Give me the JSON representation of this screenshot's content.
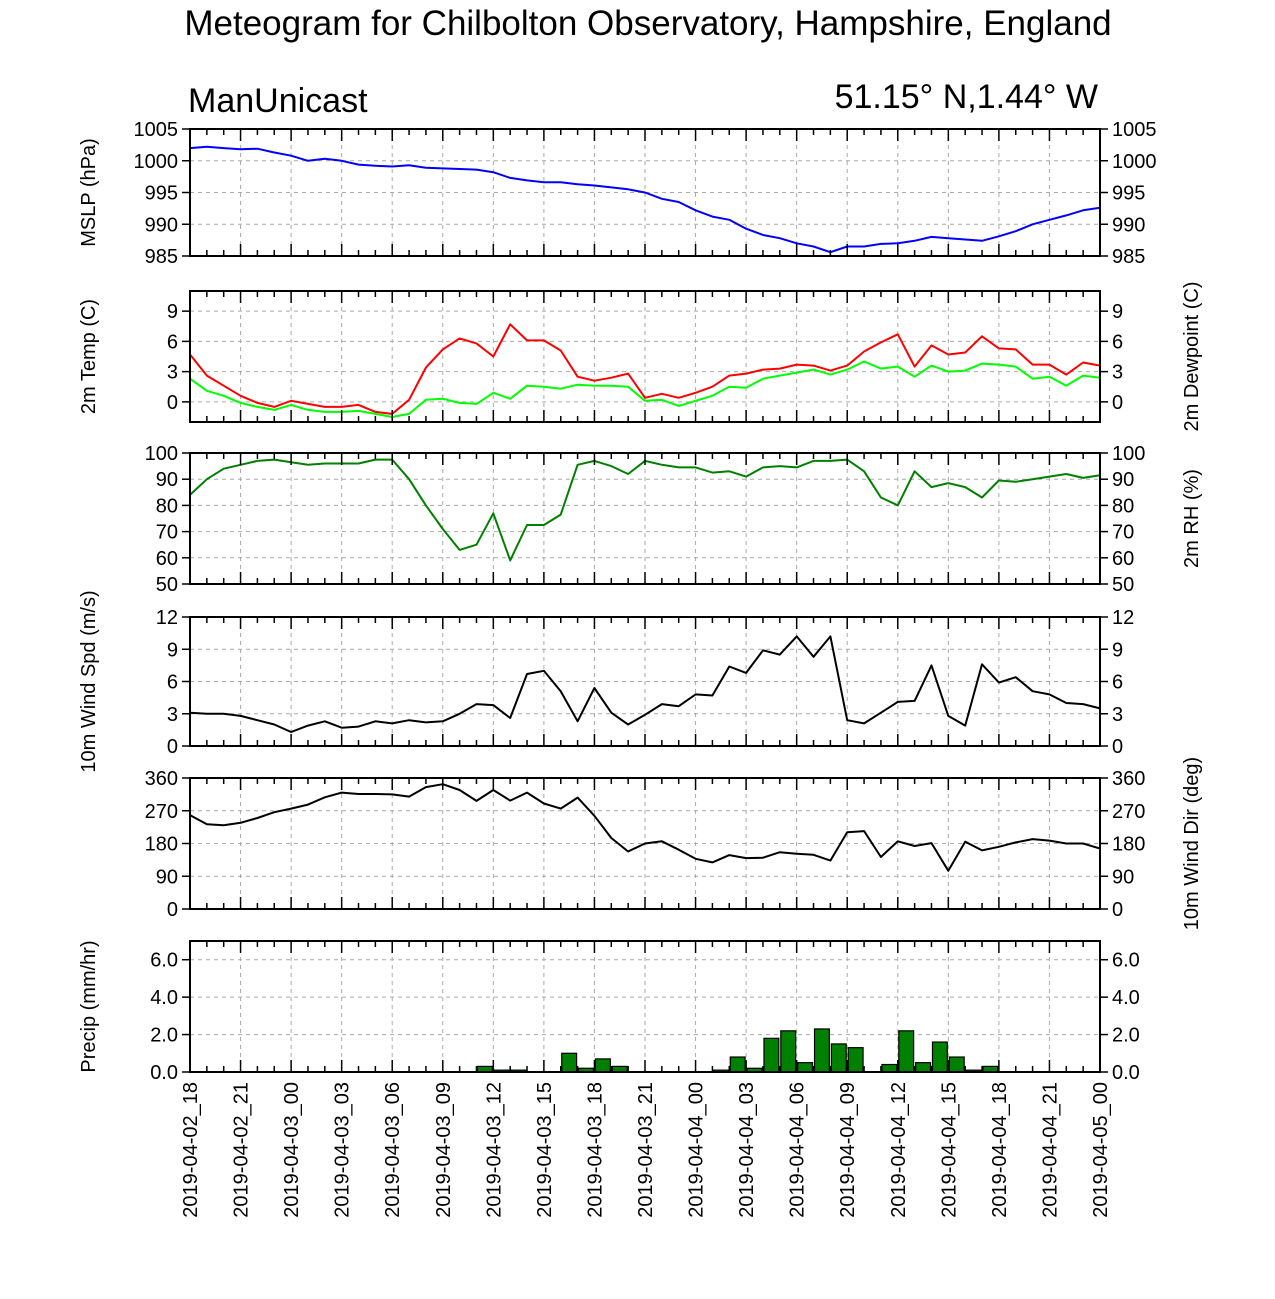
{
  "title": "Meteogram for Chilbolton Observatory, Hampshire, England",
  "model_label": "ManUnicast",
  "location_label": "51.15° N,1.44° W",
  "colors": {
    "mslp": "#0000ff",
    "temp": "#ff0000",
    "dewpoint": "#00ff00",
    "rh": "#008000",
    "wind": "#000000",
    "precip_fill": "#008000",
    "grid": "#aaaaaa"
  },
  "chart_data": {
    "type": "line",
    "time_axis": {
      "start": "2019-04-02_18",
      "end": "2019-04-05_00",
      "hours_per_step": 1,
      "tick_labels": [
        "2019-04-02_18",
        "2019-04-02_21",
        "2019-04-03_00",
        "2019-04-03_03",
        "2019-04-03_06",
        "2019-04-03_09",
        "2019-04-03_12",
        "2019-04-03_15",
        "2019-04-03_18",
        "2019-04-03_21",
        "2019-04-04_00",
        "2019-04-04_03",
        "2019-04-04_06",
        "2019-04-04_09",
        "2019-04-04_12",
        "2019-04-04_15",
        "2019-04-04_18",
        "2019-04-04_21",
        "2019-04-05_00"
      ]
    },
    "grid": true,
    "panels": [
      {
        "key": "mslp",
        "ylabel_left": "MSLP (hPa)",
        "ylabel_right": "",
        "ylim": [
          985,
          1005
        ],
        "ticks_left": [
          "985",
          "990",
          "995",
          "1000",
          "1005"
        ],
        "ticks_right": [
          "985",
          "990",
          "995",
          "1000",
          "1005"
        ],
        "series": [
          {
            "color_key": "mslp",
            "values": [
              1002.0,
              1002.2,
              1002.0,
              1001.8,
              1001.9,
              1001.3,
              1000.8,
              1000.0,
              1000.3,
              1000.0,
              999.4,
              999.2,
              999.1,
              999.3,
              998.9,
              998.8,
              998.7,
              998.6,
              998.2,
              997.3,
              996.9,
              996.6,
              996.6,
              996.3,
              996.1,
              995.8,
              995.5,
              995.0,
              994.0,
              993.5,
              992.2,
              991.2,
              990.7,
              989.3,
              988.3,
              987.8,
              987.0,
              986.5,
              985.6,
              986.5,
              986.5,
              986.9,
              987.0,
              987.4,
              988.0,
              987.8,
              987.6,
              987.4,
              988.1,
              988.9,
              990.0,
              990.7,
              991.4,
              992.2,
              992.6
            ]
          }
        ]
      },
      {
        "key": "temp",
        "ylabel_left": "2m Temp (C)",
        "ylabel_right": "2m Dewpoint (C)",
        "ylim": [
          -2,
          11
        ],
        "ticks_left": [
          "0",
          "3",
          "6",
          "9"
        ],
        "ticks_right": [
          "0",
          "3",
          "6",
          "9"
        ],
        "series": [
          {
            "color_key": "temp",
            "values": [
              4.7,
              2.6,
              1.6,
              0.6,
              -0.1,
              -0.5,
              0.1,
              -0.2,
              -0.5,
              -0.5,
              -0.3,
              -1.0,
              -1.2,
              0.2,
              3.4,
              5.2,
              6.3,
              5.8,
              4.5,
              7.7,
              6.1,
              6.1,
              5.1,
              2.5,
              2.1,
              2.4,
              2.8,
              0.4,
              0.8,
              0.4,
              0.9,
              1.5,
              2.6,
              2.8,
              3.2,
              3.3,
              3.7,
              3.6,
              3.1,
              3.6,
              5.0,
              5.9,
              6.7,
              3.5,
              5.6,
              4.7,
              4.9,
              6.5,
              5.3,
              5.2,
              3.7,
              3.7,
              2.7,
              3.9,
              3.6
            ]
          },
          {
            "color_key": "dewpoint",
            "values": [
              2.3,
              1.1,
              0.6,
              -0.1,
              -0.5,
              -0.8,
              -0.3,
              -0.8,
              -1.0,
              -1.0,
              -0.9,
              -1.2,
              -1.5,
              -1.2,
              0.2,
              0.3,
              -0.1,
              -0.2,
              0.9,
              0.3,
              1.6,
              1.5,
              1.3,
              1.7,
              1.6,
              1.6,
              1.5,
              0.1,
              0.2,
              -0.4,
              0.1,
              0.6,
              1.5,
              1.4,
              2.3,
              2.6,
              2.9,
              3.2,
              2.7,
              3.2,
              4.0,
              3.3,
              3.5,
              2.5,
              3.6,
              3.0,
              3.1,
              3.8,
              3.7,
              3.5,
              2.3,
              2.5,
              1.6,
              2.6,
              2.4
            ]
          }
        ]
      },
      {
        "key": "rh",
        "ylabel_left": "",
        "ylabel_right": "2m RH (%)",
        "ylim": [
          50,
          100
        ],
        "ticks_left": [
          "50",
          "60",
          "70",
          "80",
          "90",
          "100"
        ],
        "ticks_right": [
          "50",
          "60",
          "70",
          "80",
          "90",
          "100"
        ],
        "series": [
          {
            "color_key": "rh",
            "values": [
              84,
              90,
              94,
              95.5,
              97,
              97.5,
              96.5,
              95.5,
              96,
              96,
              96,
              97.5,
              97.5,
              90,
              80,
              71,
              63,
              65,
              77,
              59,
              72.5,
              72.5,
              76.5,
              95.5,
              97,
              95,
              92,
              97,
              95.5,
              94.5,
              94.5,
              92.5,
              93,
              91,
              94.5,
              95,
              94.5,
              97,
              97,
              97.5,
              93,
              83,
              80,
              93,
              87,
              88.5,
              87,
              83,
              89.5,
              89,
              90,
              91,
              92,
              90.5,
              91.5
            ]
          }
        ]
      },
      {
        "key": "wind",
        "ylabel_left": "10m Wind Spd (m/s)",
        "ylabel_right": "",
        "ylim": [
          0,
          12
        ],
        "ticks_left": [
          "0",
          "3",
          "6",
          "9",
          "12"
        ],
        "ticks_right": [
          "0",
          "3",
          "6",
          "9",
          "12"
        ],
        "series": [
          {
            "color_key": "wind",
            "values": [
              3.1,
              3.0,
              3.0,
              2.8,
              2.4,
              2.0,
              1.3,
              1.9,
              2.3,
              1.7,
              1.8,
              2.3,
              2.1,
              2.4,
              2.2,
              2.3,
              3.0,
              3.9,
              3.8,
              2.6,
              6.7,
              7.0,
              5.1,
              2.3,
              5.4,
              3.1,
              2.0,
              2.9,
              3.9,
              3.7,
              4.8,
              4.7,
              7.4,
              6.8,
              8.9,
              8.5,
              10.2,
              8.3,
              10.2,
              2.4,
              2.1,
              3.1,
              4.1,
              4.2,
              7.5,
              2.8,
              1.9,
              7.6,
              5.9,
              6.4,
              5.1,
              4.8,
              4.0,
              3.9,
              3.5
            ]
          }
        ]
      },
      {
        "key": "wdir",
        "ylabel_left": "",
        "ylabel_right": "10m Wind Dir (deg)",
        "ylim": [
          0,
          360
        ],
        "ticks_left": [
          "0",
          "90",
          "180",
          "270",
          "360"
        ],
        "ticks_right": [
          "0",
          "90",
          "180",
          "270",
          "360"
        ],
        "series": [
          {
            "color_key": "wind",
            "values": [
              258,
              233,
              230,
              237,
              250,
              266,
              276,
              287,
              307,
              320,
              316,
              316,
              315,
              309,
              335,
              343,
              327,
              297,
              327,
              298,
              320,
              290,
              276,
              306,
              256,
              195,
              158,
              180,
              186,
              163,
              138,
              128,
              148,
              140,
              141,
              156,
              152,
              149,
              133,
              211,
              214,
              143,
              186,
              173,
              181,
              105,
              185,
              161,
              171,
              183,
              192,
              188,
              180,
              180,
              166
            ]
          }
        ]
      },
      {
        "key": "precip",
        "ylabel_left": "Precip (mm/hr)",
        "ylabel_right": "",
        "ylim": [
          0,
          7
        ],
        "ticks_left": [
          "0.0",
          "2.0",
          "4.0",
          "6.0"
        ],
        "ticks_right": [
          "0.0",
          "2.0",
          "4.0",
          "6.0"
        ],
        "bars": {
          "color_key": "precip_fill",
          "values": [
            0,
            0,
            0,
            0,
            0,
            0,
            0,
            0,
            0,
            0,
            0,
            0,
            0,
            0,
            0,
            0,
            0,
            0.3,
            0.1,
            0.1,
            0,
            0,
            1.0,
            0.2,
            0.7,
            0.3,
            0,
            0,
            0,
            0,
            0,
            0.1,
            0.8,
            0.2,
            1.8,
            2.2,
            0.5,
            2.3,
            1.5,
            1.3,
            0,
            0.4,
            2.2,
            0.5,
            1.6,
            0.8,
            0.1,
            0.3,
            0,
            0,
            0,
            0,
            0,
            0
          ]
        }
      }
    ]
  }
}
